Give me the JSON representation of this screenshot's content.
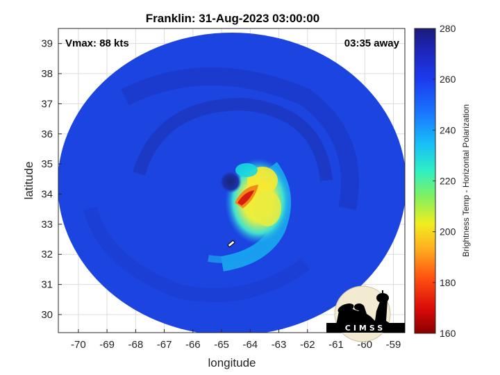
{
  "title": "Franklin: 31-Aug-2023 03:00:00",
  "vmax_label": "Vmax: 88 kts",
  "time_label": "03:35 away",
  "logo_text": "CIMSS",
  "map": {
    "x_ticks": [
      "-70",
      "-69",
      "-68",
      "-67",
      "-66",
      "-65",
      "-64",
      "-63",
      "-62",
      "-61",
      "-60",
      "-59"
    ],
    "y_ticks": [
      "30",
      "31",
      "32",
      "33",
      "34",
      "35",
      "36",
      "37",
      "38",
      "39"
    ],
    "xlabel": "longitude",
    "ylabel": "latitude",
    "x_range": [
      -70.7,
      -58.6
    ],
    "y_range": [
      29.4,
      39.5
    ],
    "grid": true
  },
  "colorbar": {
    "ticks": [
      "280",
      "260",
      "240",
      "220",
      "200",
      "180",
      "160"
    ],
    "range": [
      160,
      280
    ],
    "label": "Brightness Temp - Horizontal Polarization",
    "colors": [
      "#1e1e8c",
      "#1e2ed6",
      "#1f5cff",
      "#1aa0ff",
      "#18d8e0",
      "#3ff0a8",
      "#c8f040",
      "#ffd21e",
      "#ff8a10",
      "#f02010",
      "#8a0000"
    ]
  },
  "storm_colors": {
    "background": "#1c44e0",
    "eye_dark": "#1b2c9a",
    "cyan": "#1ac8f0",
    "yellow": "#e8e83a",
    "orange": "#f08a18",
    "red": "#d81c10"
  }
}
